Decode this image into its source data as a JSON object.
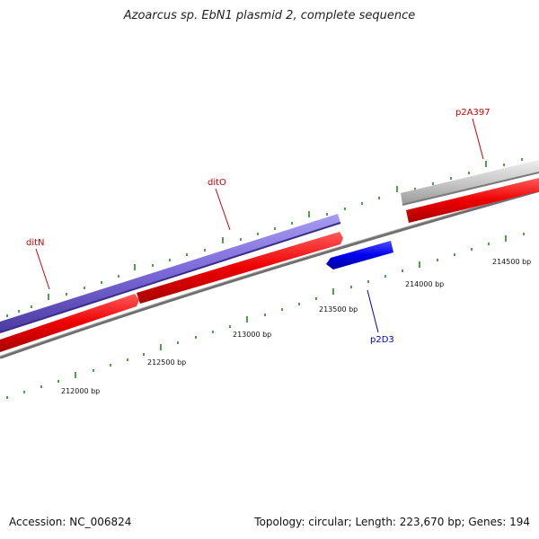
{
  "title": "Azoarcus sp. EbN1 plasmid 2, complete sequence",
  "footer": {
    "accession": "Accession: NC_006824",
    "summary": "Topology: circular; Length: 223,670 bp; Genes: 194"
  },
  "genes": [
    {
      "name": "ditN",
      "color": "#cc0000"
    },
    {
      "name": "ditO",
      "color": "#cc0000"
    },
    {
      "name": "p2A397",
      "color": "#cc0000"
    },
    {
      "name": "p2D3",
      "color": "#0000cc"
    }
  ],
  "ticks": [
    "212000 bp",
    "212500 bp",
    "213000 bp",
    "213500 bp",
    "214000 bp",
    "214500 bp"
  ],
  "colors": {
    "backbone": "#808080",
    "forward_gene": "#ee0000",
    "operon": "#7b68d8",
    "reverse_gene": "#0000ee",
    "other_feature": "#c8c8c8",
    "tick": "#228b22"
  }
}
